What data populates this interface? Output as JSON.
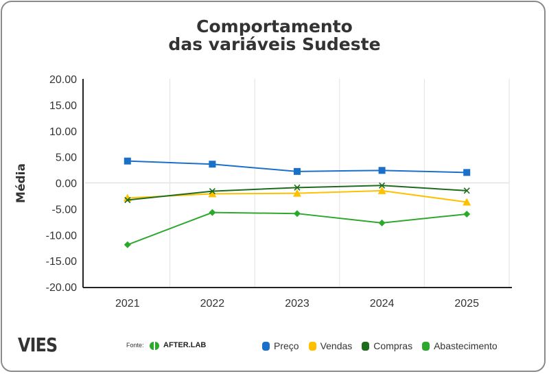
{
  "chart_data": {
    "type": "line",
    "title": "Comportamento das variáveis Sudeste",
    "title_lines": [
      "Comportamento",
      "das variáveis Sudeste"
    ],
    "xlabel": "",
    "ylabel": "Média",
    "categories": [
      "2021",
      "2022",
      "2023",
      "2024",
      "2025"
    ],
    "ylim": [
      -20,
      20
    ],
    "yticks": [
      "20.00",
      "15.00",
      "10.00",
      "5.00",
      "0.00",
      "-5.00",
      "-10.00",
      "-15.00",
      "-20.00"
    ],
    "grid": true,
    "legend_position": "bottom-right",
    "series": [
      {
        "name": "Preço",
        "color": "#1a6fc9",
        "marker": "square",
        "values": [
          4.2,
          3.6,
          2.2,
          2.4,
          2.0
        ]
      },
      {
        "name": "Vendas",
        "color": "#ffc000",
        "marker": "triangle",
        "values": [
          -2.9,
          -2.1,
          -2.0,
          -1.5,
          -3.7
        ]
      },
      {
        "name": "Compras",
        "color": "#1e6b1e",
        "marker": "x",
        "values": [
          -3.3,
          -1.6,
          -0.9,
          -0.5,
          -1.5
        ]
      },
      {
        "name": "Abastecimento",
        "color": "#2ca82c",
        "marker": "diamond",
        "values": [
          -11.9,
          -5.7,
          -5.9,
          -7.7,
          -6.0
        ]
      }
    ]
  },
  "footer": {
    "brand": "VIES",
    "source_label": "Fonte:",
    "source_name": "AFTER.LAB"
  }
}
